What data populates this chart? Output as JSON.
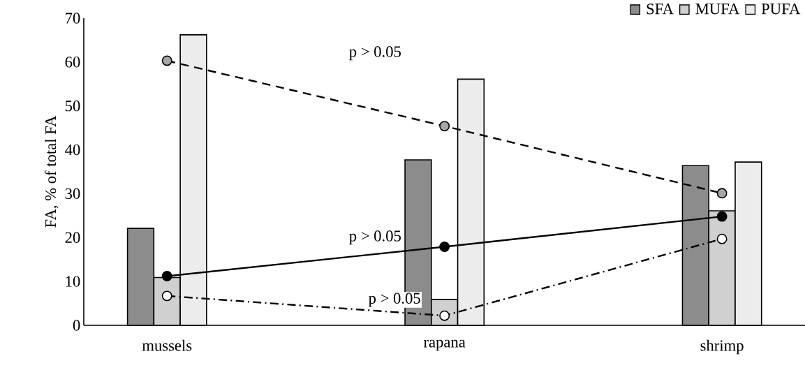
{
  "chart_data": {
    "type": "bar",
    "ylabel": "FA, % of total FA",
    "categories": [
      "mussels",
      "rapana",
      "shrimp"
    ],
    "series": [
      {
        "name": "SFA",
        "color": "#8c8c8c",
        "values": [
          22.1,
          37.7,
          36.4
        ]
      },
      {
        "name": "MUFA",
        "color": "#d0d0d0",
        "values": [
          10.9,
          5.9,
          26.1
        ]
      },
      {
        "name": "PUFA",
        "color": "#ececec",
        "values": [
          66.2,
          56.1,
          37.2
        ]
      },
      {
        "type": "line",
        "color": "#000000",
        "line_style": "solid",
        "marker": "circle",
        "values": [
          11.2,
          17.9,
          24.8
        ]
      },
      {
        "type": "line",
        "color": "#a6a6a6",
        "line_style": "dashed",
        "marker": "circle",
        "values": [
          60.3,
          45.4,
          30.1
        ]
      },
      {
        "type": "line",
        "color": "#ffffff",
        "line_style": "dashdot",
        "marker": "circle",
        "values": [
          6.7,
          2.2,
          19.7
        ]
      }
    ],
    "ylim": [
      0,
      70
    ],
    "yticks": [
      0,
      10,
      20,
      30,
      40,
      50,
      60,
      70
    ],
    "legend": "top right",
    "grid": false,
    "annotations": [
      "p > 0.05",
      "p > 0.05",
      "p > 0.05"
    ]
  }
}
